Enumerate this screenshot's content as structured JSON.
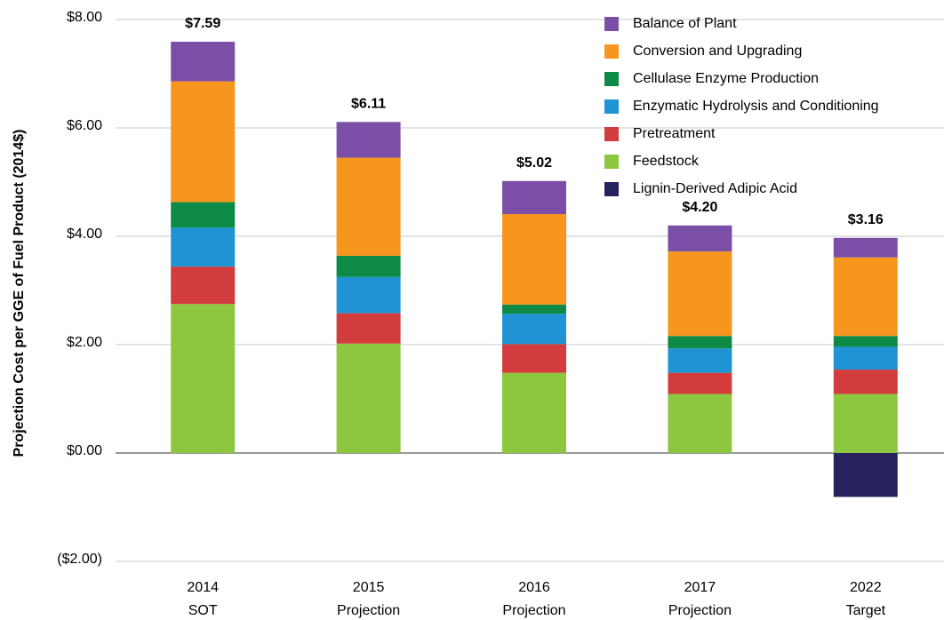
{
  "chart_data": {
    "type": "stacked_bar",
    "y_label": "Projection Cost per GGE of Fuel Product (2014$)",
    "categories": [
      [
        "2014",
        "SOT"
      ],
      [
        "2015",
        "Projection"
      ],
      [
        "2016",
        "Projection"
      ],
      [
        "2017",
        "Projection"
      ],
      [
        "2022",
        "Target"
      ]
    ],
    "series": [
      {
        "name": "Balance of Plant",
        "color": "#7b4fa8",
        "values": [
          0.73,
          0.66,
          0.61,
          0.48,
          0.36
        ]
      },
      {
        "name": "Conversion and Upgrading",
        "color": "#f7961f",
        "values": [
          2.23,
          1.81,
          1.67,
          1.56,
          1.45
        ]
      },
      {
        "name": "Cellulase Enzyme Production",
        "color": "#0c8a46",
        "values": [
          0.47,
          0.39,
          0.17,
          0.23,
          0.2
        ]
      },
      {
        "name": "Enzymatic Hydrolysis and Conditioning",
        "color": "#1f93d3",
        "values": [
          0.72,
          0.67,
          0.56,
          0.45,
          0.42
        ]
      },
      {
        "name": "Pretreatment",
        "color": "#d23c3c",
        "values": [
          0.69,
          0.56,
          0.53,
          0.39,
          0.45
        ]
      },
      {
        "name": "Feedstock",
        "color": "#8dc63f",
        "values": [
          2.75,
          2.02,
          1.48,
          1.09,
          1.09
        ]
      },
      {
        "name": "Lignin-Derived Adipic Acid",
        "color": "#25225e",
        "values": [
          null,
          null,
          null,
          null,
          -0.81
        ]
      }
    ],
    "totals": [
      7.59,
      6.11,
      5.02,
      4.2,
      3.16
    ],
    "total_labels": [
      "$7.59",
      "$6.11",
      "$5.02",
      "$4.20",
      "$3.16"
    ],
    "ylim": [
      -2,
      8
    ],
    "yticks": [
      {
        "value": -2,
        "label": "($2.00)"
      },
      {
        "value": 0,
        "label": "$0.00"
      },
      {
        "value": 2,
        "label": "$2.00"
      },
      {
        "value": 4,
        "label": "$4.00"
      },
      {
        "value": 6,
        "label": "$6.00"
      },
      {
        "value": 8,
        "label": "$8.00"
      }
    ],
    "grid": true,
    "legend": "top-right"
  }
}
